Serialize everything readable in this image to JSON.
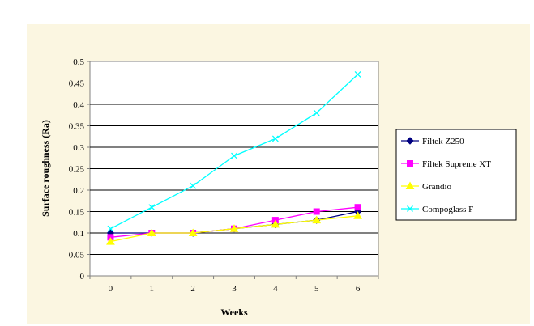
{
  "chart_data": {
    "type": "line",
    "xlabel": "Weeks",
    "ylabel": "Surface roughness (Ra)",
    "x": [
      0,
      1,
      2,
      3,
      4,
      5,
      6
    ],
    "ylim": [
      0,
      0.5
    ],
    "yticks": [
      0,
      0.05,
      0.1,
      0.15,
      0.2,
      0.25,
      0.3,
      0.35,
      0.4,
      0.45,
      0.5
    ],
    "grid": "horizontal",
    "legend_position": "right",
    "series": [
      {
        "name": "Filtek Z250",
        "values": [
          0.1,
          0.1,
          0.1,
          0.11,
          0.12,
          0.13,
          0.15
        ],
        "color": "#000080",
        "marker": "diamond"
      },
      {
        "name": "Filtek Supreme XT",
        "values": [
          0.09,
          0.1,
          0.1,
          0.11,
          0.13,
          0.15,
          0.16
        ],
        "color": "#ff00ff",
        "marker": "square"
      },
      {
        "name": "Grandio",
        "values": [
          0.08,
          0.1,
          0.1,
          0.11,
          0.12,
          0.13,
          0.14
        ],
        "color": "#ffff00",
        "marker": "triangle"
      },
      {
        "name": "Compoglass F",
        "values": [
          0.11,
          0.16,
          0.21,
          0.28,
          0.32,
          0.38,
          0.47
        ],
        "color": "#00ffff",
        "marker": "x"
      }
    ]
  }
}
